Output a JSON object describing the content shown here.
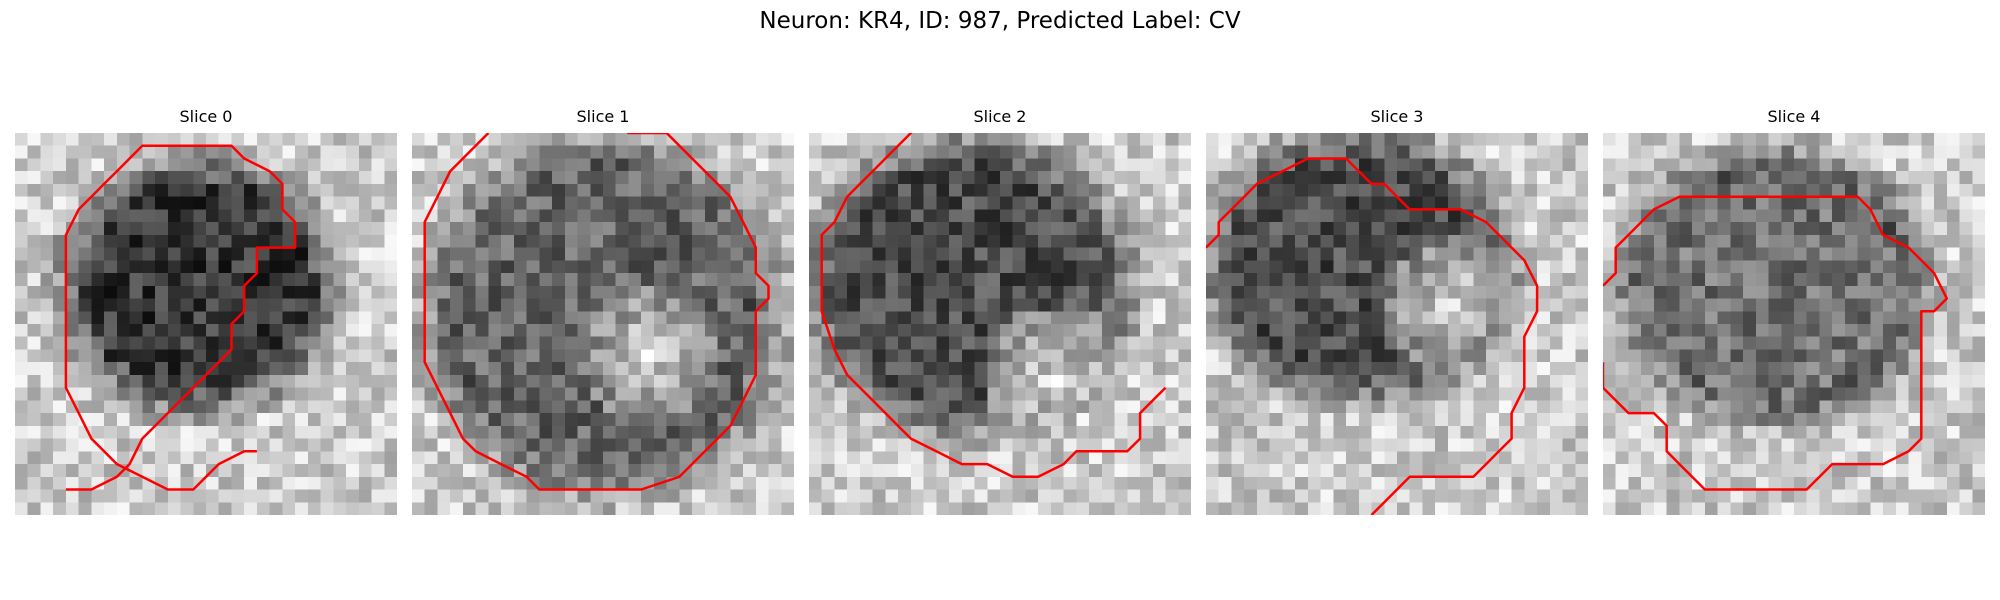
{
  "figure": {
    "title": "Neuron: KR4, ID: 987, Predicted Label: CV"
  },
  "panels": [
    {
      "title": "Slice 0"
    },
    {
      "title": "Slice 1"
    },
    {
      "title": "Slice 2"
    },
    {
      "title": "Slice 3"
    },
    {
      "title": "Slice 4"
    }
  ],
  "colors": {
    "contour": "#ff0000",
    "colormap": "gray"
  },
  "icons": [
    "grayscale-mri-slice-image",
    "red-segmentation-contour"
  ]
}
